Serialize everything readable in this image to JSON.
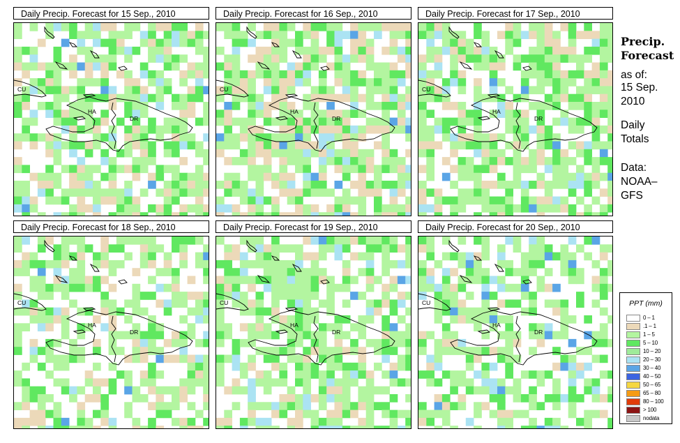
{
  "panels": [
    {
      "title": "Daily Precip. Forecast for  15 Sep., 2010"
    },
    {
      "title": "Daily Precip. Forecast for  16 Sep., 2010"
    },
    {
      "title": "Daily Precip. Forecast for  17 Sep., 2010"
    },
    {
      "title": "Daily Precip. Forecast for  18 Sep., 2010"
    },
    {
      "title": "Daily Precip. Forecast for  19 Sep., 2010"
    },
    {
      "title": "Daily Precip. Forecast for  20 Sep., 2010"
    }
  ],
  "map_labels": {
    "cuba": "CU",
    "haiti": "HA",
    "dominican_republic": "DR"
  },
  "side": {
    "title_line1": "Precip.",
    "title_line2": "Forecast",
    "asof": "as of:",
    "date_line1": "15 Sep.",
    "date_line2": "2010",
    "totals_line1": "Daily",
    "totals_line2": "Totals",
    "data_line1": "Data:",
    "data_line2": "NOAA–",
    "data_line3": "GFS"
  },
  "legend": {
    "title": "PPT (mm)",
    "items": [
      {
        "label": "0 – 1",
        "color": "#ffffff"
      },
      {
        "label": ".1 – 1",
        "color": "#ecd9b9"
      },
      {
        "label": "1 – 5",
        "color": "#b3f5a0"
      },
      {
        "label": "5 – 10",
        "color": "#60e860"
      },
      {
        "label": "10 – 20",
        "color": "#9feb9a"
      },
      {
        "label": "20 – 30",
        "color": "#abe3f3"
      },
      {
        "label": "30 – 40",
        "color": "#5aa5e6"
      },
      {
        "label": "40 – 50",
        "color": "#3c64e1"
      },
      {
        "label": "50 – 65",
        "color": "#f5d741"
      },
      {
        "label": "65 – 80",
        "color": "#f59b14"
      },
      {
        "label": "80 – 100",
        "color": "#e13c0a"
      },
      {
        "label": "> 100",
        "color": "#8c1414"
      },
      {
        "label": "nodata",
        "color": "#c8c8c8"
      }
    ]
  },
  "grid_palette": {
    "white": "#ffffff",
    "tan": "#ecd9b9",
    "light_green": "#b3f5a0",
    "green": "#60e860",
    "light_blue": "#abe3f3",
    "blue": "#5aa5e6"
  }
}
